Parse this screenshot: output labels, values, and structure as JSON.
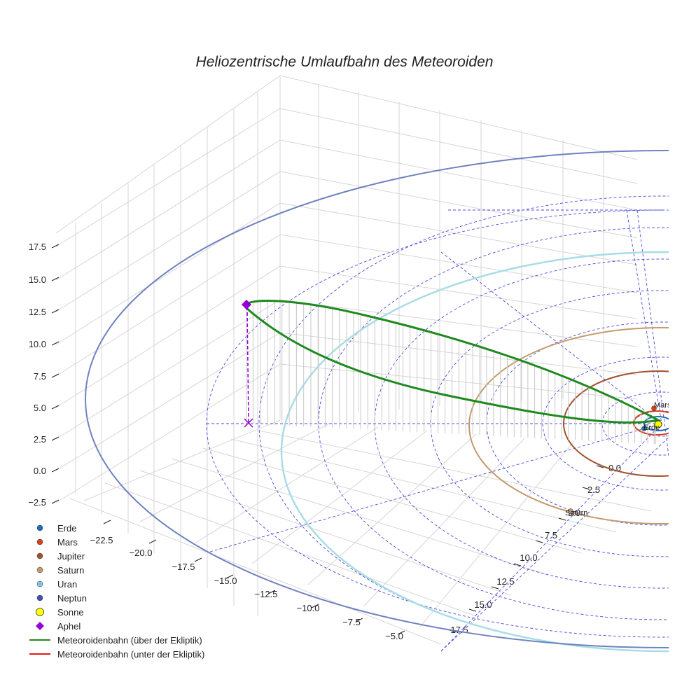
{
  "chart_data": {
    "type": "line3d",
    "title": "Heliozentrische Umlaufbahn des Meteoroiden",
    "x_ticks": [
      "−22.5",
      "−20.0",
      "−17.5",
      "−15.0",
      "−12.5",
      "−10.0",
      "−7.5",
      "−5.0"
    ],
    "y_ticks": [
      "0.0",
      "2.5",
      "5.0",
      "7.5",
      "10.0",
      "12.5",
      "15.0",
      "17.5"
    ],
    "z_ticks": [
      "17.5",
      "15.0",
      "12.5",
      "10.0",
      "7.5",
      "5.0",
      "2.5",
      "0.0",
      "−2.5"
    ],
    "planets": [
      {
        "name": "Erde",
        "color": "#1f6fb4"
      },
      {
        "name": "Mars",
        "color": "#d4421b"
      },
      {
        "name": "Jupiter",
        "color": "#a0522d"
      },
      {
        "name": "Saturn",
        "color": "#c49a6c"
      },
      {
        "name": "Uran",
        "color": "#7fc7d9"
      },
      {
        "name": "Neptun",
        "color": "#3f51b5"
      }
    ],
    "sun": {
      "name": "Sonne",
      "color": "#ffff00"
    },
    "aphel": {
      "name": "Aphel",
      "color": "#9400d3"
    },
    "series": [
      {
        "name": "Meteoroidenbahn (über der Ekliptik)",
        "color": "#1e8a1e"
      },
      {
        "name": "Meteoroidenbahn (unter der Ekliptik)",
        "color": "#e01b1b"
      }
    ],
    "point_labels": {
      "erde": "Erde",
      "mars": "Mars",
      "saturn": "Saturn"
    },
    "legend_location": "bottom-left"
  }
}
